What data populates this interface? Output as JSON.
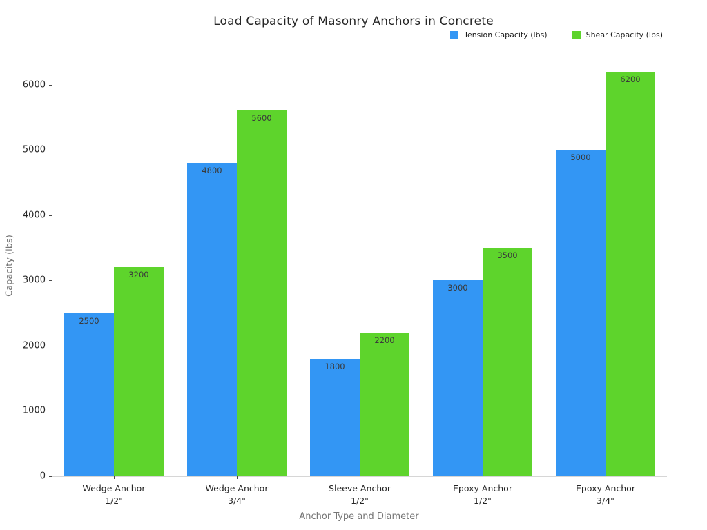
{
  "chart_data": {
    "type": "bar",
    "title": "Load Capacity of Masonry Anchors in Concrete",
    "xlabel": "Anchor Type and Diameter",
    "ylabel": "Capacity (lbs)",
    "categories": [
      "Wedge Anchor\n1/2\"",
      "Wedge Anchor\n3/4\"",
      "Sleeve Anchor\n1/2\"",
      "Epoxy Anchor\n1/2\"",
      "Epoxy Anchor\n3/4\""
    ],
    "series": [
      {
        "name": "Tension Capacity (lbs)",
        "color": "#3396f4",
        "values": [
          2500,
          4800,
          1800,
          3000,
          5000
        ]
      },
      {
        "name": "Shear Capacity (lbs)",
        "color": "#5ed42c",
        "values": [
          3200,
          5600,
          2200,
          3500,
          6200
        ]
      }
    ],
    "yticks": [
      0,
      1000,
      2000,
      3000,
      4000,
      5000,
      6000
    ],
    "ylim": [
      0,
      6450
    ],
    "grid": false,
    "legend_position": "top-right",
    "bar_value_labels": true,
    "background": "#ffffff"
  }
}
